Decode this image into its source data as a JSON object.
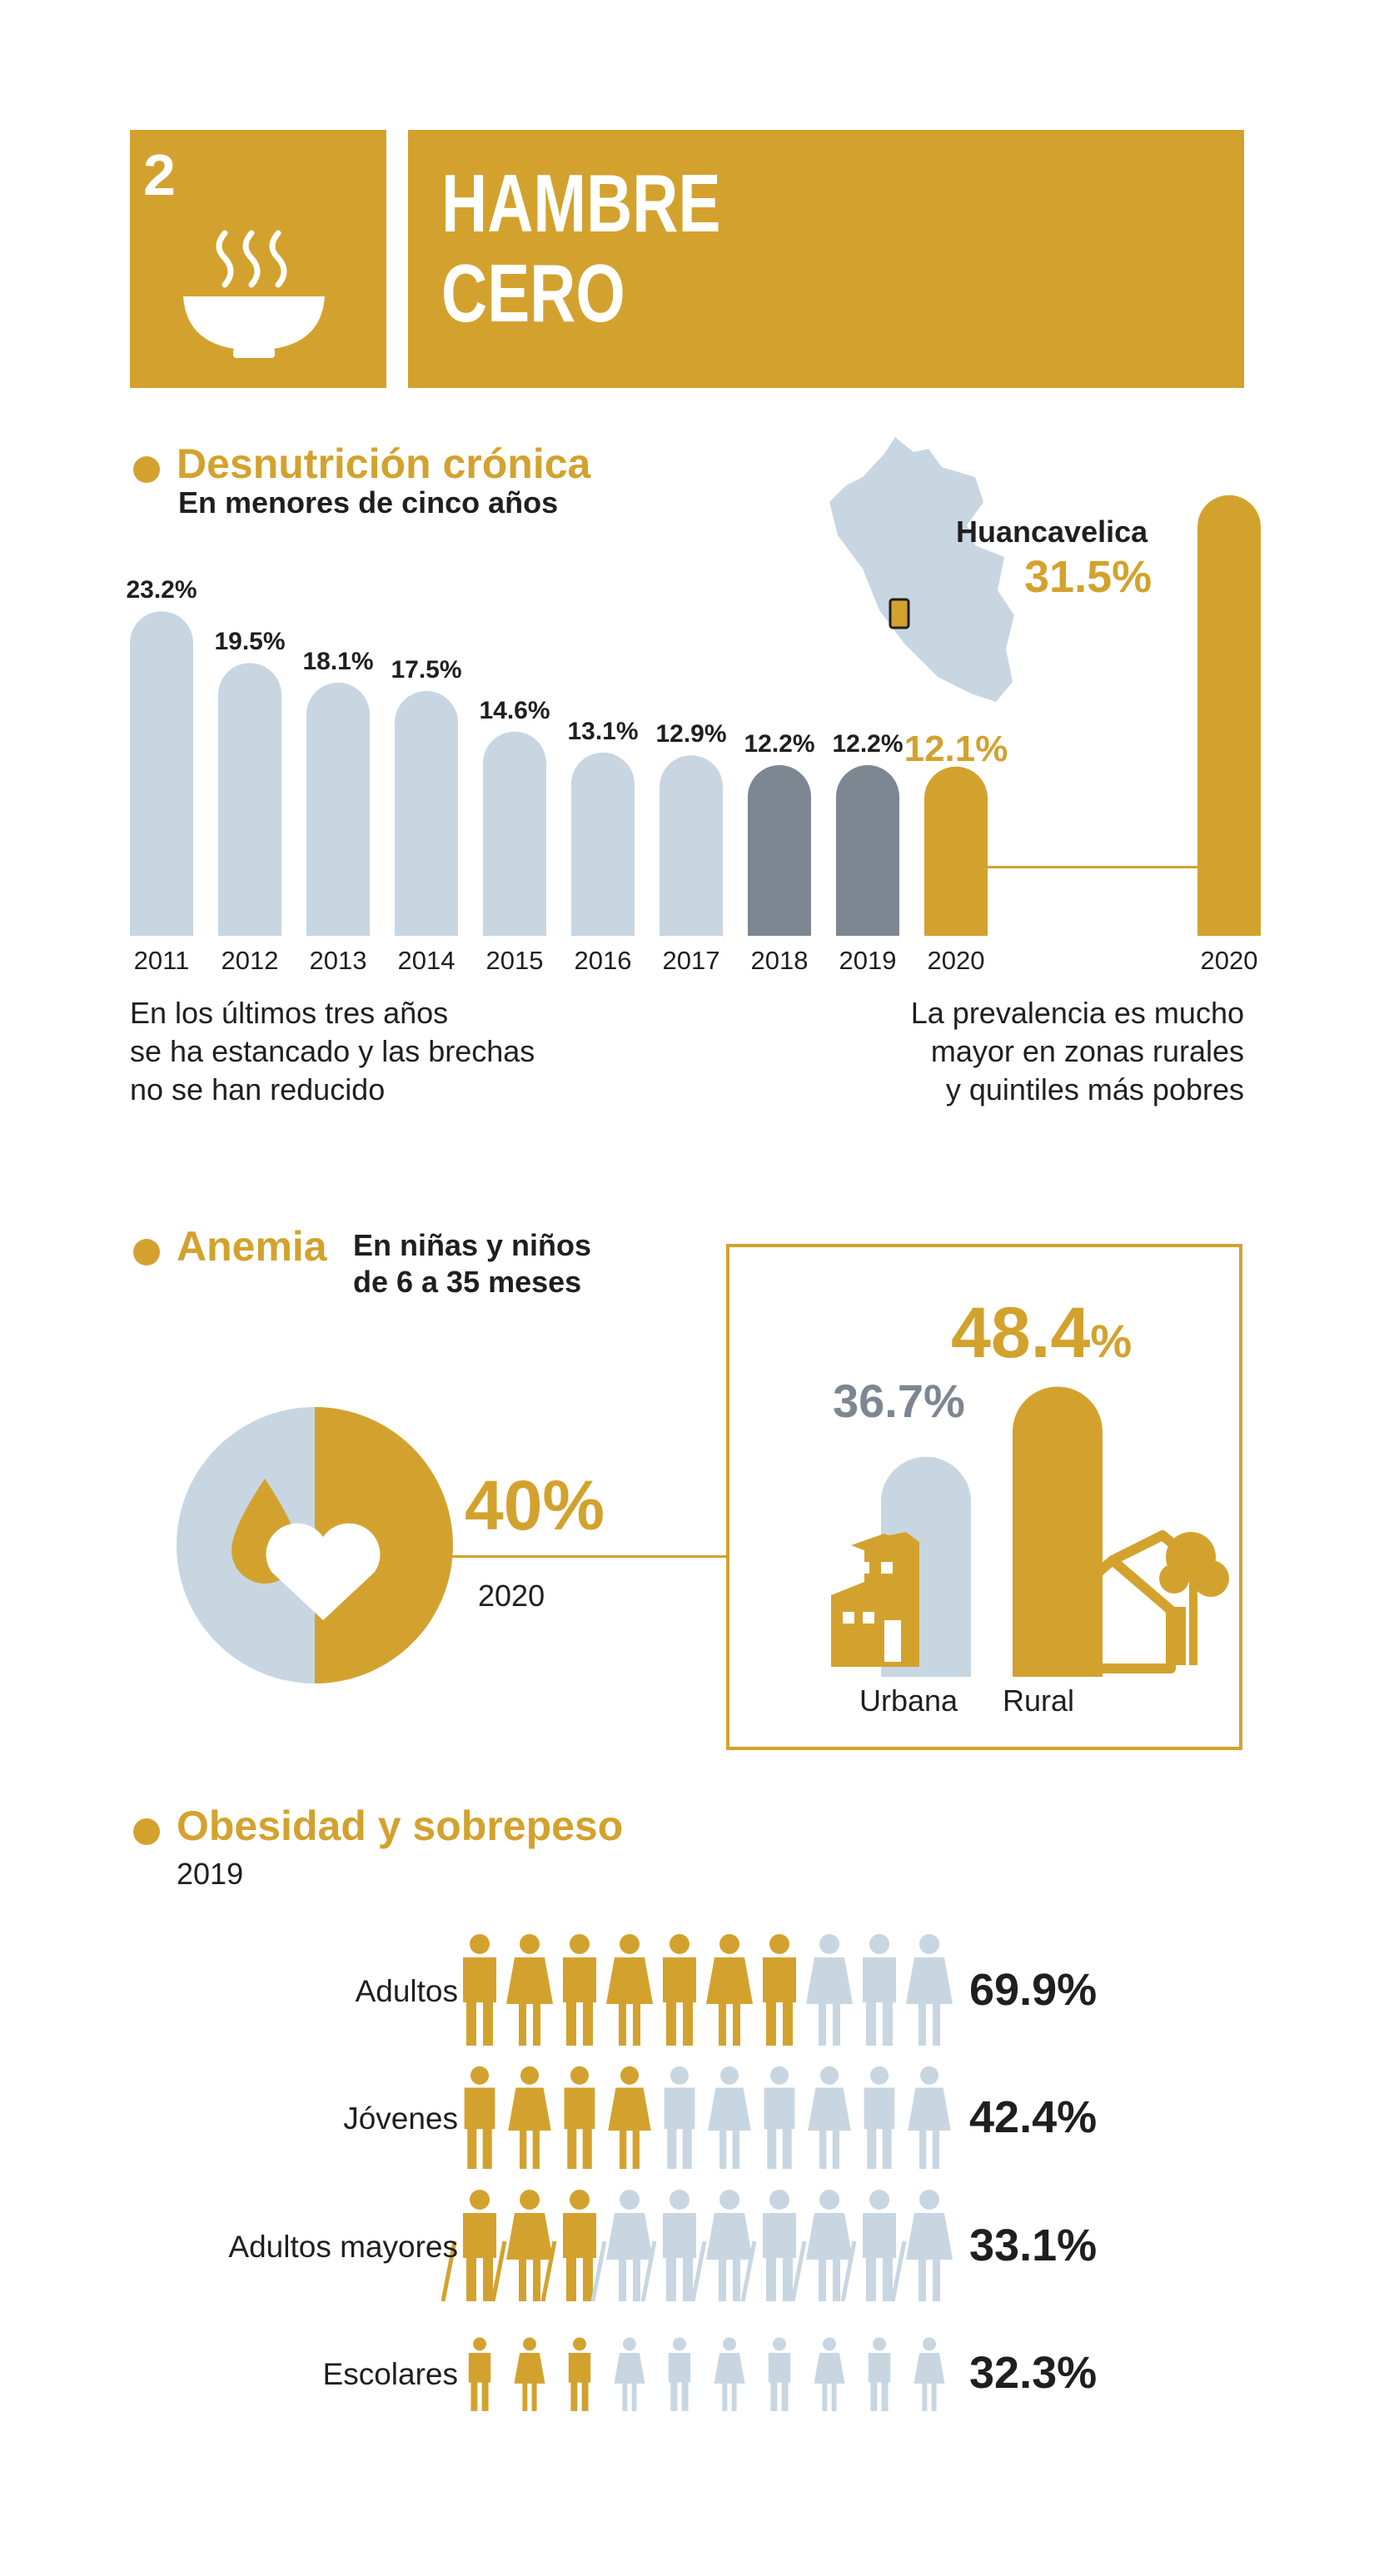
{
  "colors": {
    "gold": "#d3a22e",
    "light": "#c8d6e2",
    "gray": "#7d8791",
    "dark": "#1f1f1f"
  },
  "header": {
    "goal_number": "2",
    "title_line1": "HAMBRE",
    "title_line2": "CERO",
    "icon": "bowl-icon"
  },
  "desnutricion": {
    "title": "Desnutrición crónica",
    "subtitle": "En menores de cinco años",
    "region_name": "Huancavelica",
    "region_value": "31.5%",
    "region_year": "2020",
    "note_left": [
      "En los últimos tres años",
      "se ha estancado y las brechas",
      "no se han reducido"
    ],
    "note_right": [
      "La prevalencia es mucho",
      "mayor en zonas rurales",
      "y quintiles más pobres"
    ]
  },
  "anemia": {
    "title": "Anemia",
    "subtitle_line1": "En niñas y niños",
    "subtitle_line2": "de 6 a 35 meses",
    "value": "40%",
    "year": "2020",
    "urban_value": "36.7%",
    "rural_value_num": "48.4",
    "rural_value_pct": "%",
    "urban_label": "Urbana",
    "rural_label": "Rural"
  },
  "obesidad": {
    "title": "Obesidad y sobrepeso",
    "year": "2019"
  },
  "chart_data": [
    {
      "type": "bar",
      "title": "Desnutrición crónica",
      "subtitle": "En menores de cinco años",
      "categories": [
        "2011",
        "2012",
        "2013",
        "2014",
        "2015",
        "2016",
        "2017",
        "2018",
        "2019",
        "2020"
      ],
      "values": [
        23.2,
        19.5,
        18.1,
        17.5,
        14.6,
        13.1,
        12.9,
        12.2,
        12.2,
        12.1
      ],
      "labels": [
        "23.2%",
        "19.5%",
        "18.1%",
        "17.5%",
        "14.6%",
        "13.1%",
        "12.9%",
        "12.2%",
        "12.2%",
        "12.1%"
      ],
      "bar_colors": [
        "#c8d6e2",
        "#c8d6e2",
        "#c8d6e2",
        "#c8d6e2",
        "#c8d6e2",
        "#c8d6e2",
        "#c8d6e2",
        "#7d8791",
        "#7d8791",
        "#d3a22e"
      ],
      "label_colors": [
        "#1f1f1f",
        "#1f1f1f",
        "#1f1f1f",
        "#1f1f1f",
        "#1f1f1f",
        "#1f1f1f",
        "#1f1f1f",
        "#1f1f1f",
        "#1f1f1f",
        "#d3a22e"
      ],
      "highlight": {
        "category": "2020",
        "value": 31.5,
        "label": "Huancavelica"
      }
    },
    {
      "type": "pie",
      "title": "Anemia",
      "slices": [
        {
          "name": "anemia",
          "value": 40
        }
      ],
      "year": "2020"
    },
    {
      "type": "bar",
      "categories": [
        "Urbana",
        "Rural"
      ],
      "values": [
        36.7,
        48.4
      ]
    },
    {
      "type": "bar",
      "title": "Obesidad y sobrepeso",
      "categories": [
        "Adultos",
        "Jóvenes",
        "Adultos mayores",
        "Escolares"
      ],
      "values": [
        69.9,
        42.4,
        33.1,
        32.3
      ],
      "labels": [
        "69.9%",
        "42.4%",
        "33.1%",
        "32.3%"
      ]
    }
  ]
}
